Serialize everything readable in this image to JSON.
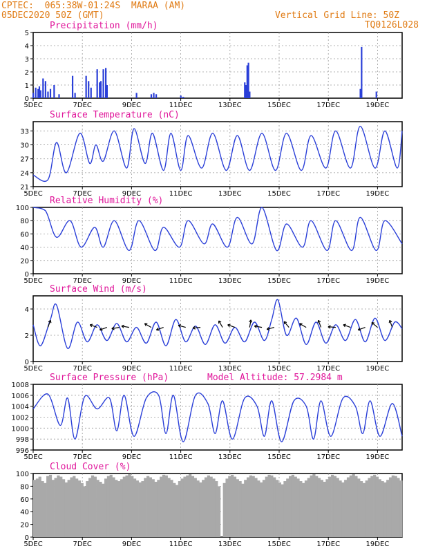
{
  "header": {
    "line1": "CPTEC:  065:38W-01:24S  MARAA (AM)",
    "line2": "05DEC2020 50Z (GMT)",
    "right1": "Vertical Grid Line: 50Z",
    "right2": "TQ0126L028"
  },
  "colors": {
    "header": "#e07b14",
    "title": "#e0159a",
    "series": "#2a3fd8",
    "bars": "#2a3fd8",
    "cloud": "#a9a9a9",
    "wind_arrows": "#000000"
  },
  "x_axis": {
    "tick_labels": [
      "5DEC",
      "7DEC",
      "9DEC",
      "11DEC",
      "13DEC",
      "15DEC",
      "17DEC",
      "19DEC"
    ],
    "tick_days": [
      5,
      7,
      9,
      11,
      13,
      15,
      17,
      19
    ],
    "range_days": [
      5,
      20
    ]
  },
  "chart_data": [
    {
      "type": "bar",
      "title": "Precipitation (mm/h)",
      "ylim": [
        0,
        5
      ],
      "yticks": [
        0,
        1,
        2,
        3,
        4,
        5
      ],
      "grid": true,
      "x_days": [
        5.0,
        5.1,
        5.2,
        5.25,
        5.3,
        5.4,
        5.5,
        5.6,
        5.7,
        5.85,
        6.05,
        6.6,
        6.7,
        7.15,
        7.25,
        7.35,
        7.6,
        7.7,
        7.75,
        7.85,
        7.95,
        8.0,
        9.2,
        9.8,
        9.9,
        10.0,
        11.0,
        11.1,
        13.6,
        13.65,
        13.7,
        13.75,
        13.8,
        18.3,
        18.35,
        18.95
      ],
      "values": [
        0.4,
        0.8,
        0.7,
        0.9,
        0.6,
        1.5,
        1.3,
        0.5,
        0.7,
        1.0,
        0.3,
        1.7,
        0.4,
        1.7,
        1.3,
        0.8,
        2.2,
        1.2,
        1.3,
        2.2,
        2.3,
        1.0,
        0.4,
        0.3,
        0.4,
        0.3,
        0.2,
        0.1,
        1.2,
        1.0,
        2.5,
        2.7,
        0.5,
        0.7,
        3.9,
        0.5
      ]
    },
    {
      "type": "line",
      "title": "Surface Temperature (nC)",
      "ylim": [
        21,
        35
      ],
      "yticks": [
        21,
        24,
        27,
        30,
        33
      ],
      "grid": true,
      "x_days": [
        5.0,
        5.6,
        5.95,
        6.35,
        6.9,
        7.3,
        7.55,
        7.85,
        8.3,
        8.8,
        9.1,
        9.55,
        9.85,
        10.3,
        10.6,
        11.0,
        11.3,
        11.85,
        12.3,
        12.85,
        13.3,
        13.8,
        14.3,
        14.85,
        15.3,
        15.9,
        16.3,
        16.9,
        17.3,
        17.9,
        18.3,
        18.9,
        19.3,
        19.8,
        20.0
      ],
      "values": [
        23.5,
        22.5,
        30.5,
        24.0,
        32.5,
        26.0,
        30.0,
        26.5,
        33.0,
        25.0,
        33.5,
        26.0,
        32.5,
        24.5,
        32.5,
        24.5,
        32.0,
        25.0,
        32.5,
        24.5,
        32.0,
        24.5,
        32.5,
        24.5,
        32.5,
        24.5,
        32.0,
        25.0,
        33.0,
        25.0,
        34.0,
        25.0,
        33.0,
        25.0,
        33.0
      ]
    },
    {
      "type": "line",
      "title": "Relative Humidity (%)",
      "ylim": [
        0,
        100
      ],
      "yticks": [
        0,
        20,
        40,
        60,
        80,
        100
      ],
      "grid": true,
      "x_days": [
        5.0,
        5.5,
        5.95,
        6.5,
        6.95,
        7.5,
        7.85,
        8.3,
        8.9,
        9.3,
        9.95,
        10.3,
        10.95,
        11.3,
        11.95,
        12.3,
        12.9,
        13.3,
        13.9,
        14.3,
        14.9,
        15.3,
        15.95,
        16.3,
        16.95,
        17.3,
        17.95,
        18.3,
        18.95,
        19.3,
        20.0
      ],
      "values": [
        100,
        95,
        55,
        80,
        40,
        70,
        40,
        80,
        35,
        80,
        35,
        70,
        40,
        80,
        45,
        75,
        40,
        85,
        45,
        100,
        35,
        75,
        40,
        80,
        35,
        80,
        35,
        85,
        35,
        80,
        45
      ]
    },
    {
      "type": "line",
      "title": "Surface Wind (m/s)",
      "ylim": [
        0,
        5
      ],
      "yticks": [
        0,
        2,
        4
      ],
      "grid": true,
      "x_days": [
        5.0,
        5.3,
        5.7,
        5.95,
        6.4,
        6.8,
        7.2,
        7.6,
        8.0,
        8.4,
        8.8,
        9.2,
        9.6,
        10.0,
        10.4,
        10.8,
        11.2,
        11.6,
        12.0,
        12.4,
        12.8,
        13.2,
        13.6,
        14.0,
        14.4,
        14.7,
        14.95,
        15.3,
        15.7,
        16.1,
        16.5,
        16.9,
        17.3,
        17.7,
        18.1,
        18.5,
        18.9,
        19.3,
        19.7,
        20.0
      ],
      "values": [
        2.8,
        1.2,
        3.2,
        4.3,
        1.0,
        3.0,
        1.5,
        2.8,
        1.6,
        2.9,
        1.5,
        2.6,
        1.4,
        3.0,
        1.2,
        3.2,
        1.5,
        2.7,
        1.3,
        2.8,
        1.4,
        2.6,
        1.5,
        3.0,
        1.6,
        3.2,
        4.7,
        2.0,
        3.3,
        1.3,
        3.0,
        1.4,
        2.8,
        1.6,
        3.2,
        1.5,
        3.3,
        1.6,
        3.0,
        2.5
      ]
    },
    {
      "type": "line",
      "title": "Surface Pressure (hPa)",
      "annotation": "Model Altitude: 57.2984 m",
      "ylim": [
        996,
        1008
      ],
      "yticks": [
        996,
        998,
        1000,
        1002,
        1004,
        1006,
        1008
      ],
      "grid": true,
      "x_days": [
        5.0,
        5.6,
        6.1,
        6.4,
        6.7,
        7.1,
        7.6,
        8.1,
        8.4,
        8.7,
        9.1,
        9.6,
        10.1,
        10.4,
        10.7,
        11.1,
        11.6,
        12.1,
        12.4,
        12.7,
        13.1,
        13.6,
        14.1,
        14.4,
        14.7,
        15.1,
        15.6,
        16.1,
        16.4,
        16.7,
        17.1,
        17.6,
        18.1,
        18.4,
        18.7,
        19.1,
        19.6,
        20.0
      ],
      "values": [
        1003.5,
        1006.2,
        1000.5,
        1005.5,
        998.0,
        1005.8,
        1003.5,
        1005.5,
        999.5,
        1006.0,
        998.5,
        1005.5,
        1006.0,
        999.0,
        1006.0,
        997.5,
        1006.0,
        1004.5,
        999.0,
        1005.0,
        998.0,
        1005.5,
        1004.0,
        998.5,
        1005.0,
        997.5,
        1005.0,
        1004.0,
        998.0,
        1005.0,
        998.5,
        1005.5,
        1004.0,
        999.0,
        1005.0,
        998.5,
        1004.5,
        998.5
      ]
    },
    {
      "type": "bar",
      "title": "Cloud Cover (%)",
      "ylim": [
        0,
        100
      ],
      "yticks": [
        0,
        20,
        40,
        60,
        80,
        100
      ],
      "grid": true,
      "x_range_days": [
        5,
        20
      ],
      "values": [
        90,
        92,
        95,
        88,
        85,
        96,
        98,
        90,
        93,
        97,
        95,
        91,
        86,
        90,
        94,
        96,
        92,
        89,
        85,
        80,
        88,
        93,
        97,
        95,
        90,
        87,
        84,
        92,
        96,
        98,
        94,
        90,
        88,
        91,
        95,
        97,
        99,
        96,
        92,
        89,
        86,
        88,
        93,
        96,
        94,
        91,
        87,
        90,
        95,
        98,
        97,
        93,
        90,
        85,
        82,
        88,
        92,
        95,
        97,
        99,
        96,
        93,
        89,
        86,
        90,
        94,
        97,
        95,
        92,
        88,
        80,
        0,
        85,
        92,
        96,
        98,
        95,
        91,
        88,
        84,
        90,
        94,
        97,
        96,
        93,
        89,
        86,
        90,
        95,
        98,
        97,
        94,
        90,
        86,
        83,
        88,
        92,
        96,
        98,
        95,
        92,
        88,
        85,
        89,
        93,
        97,
        99,
        96,
        93,
        90,
        87,
        91,
        95,
        98,
        96,
        93,
        89,
        86,
        90,
        94,
        97,
        99,
        96,
        92,
        88,
        85,
        89,
        93,
        96,
        98,
        95,
        91,
        88,
        86,
        90,
        94,
        97,
        96,
        93,
        89
      ]
    }
  ]
}
